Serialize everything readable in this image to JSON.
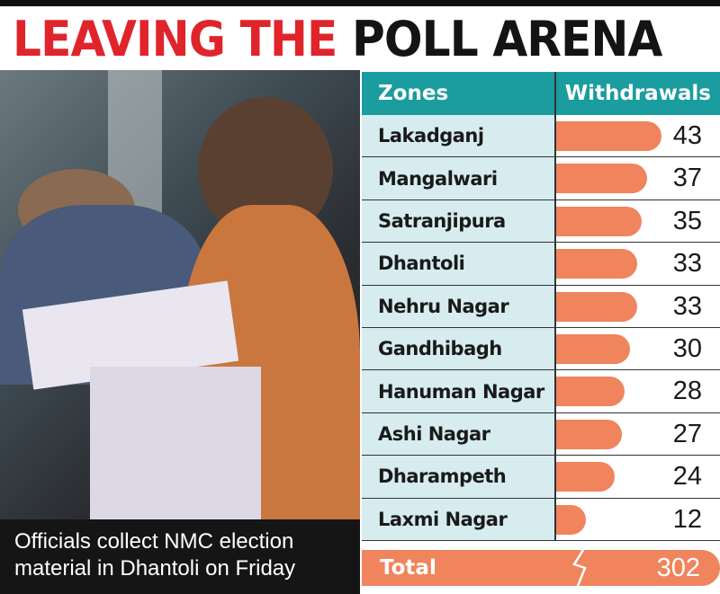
{
  "title": {
    "part1": "LEAVING THE",
    "part2": "POLL ARENA"
  },
  "caption": "Officials collect NMC election material in Dhantoli on Friday",
  "colors": {
    "title_red": "#e0242b",
    "header_teal": "#1b9c9e",
    "bar_orange": "#f0845c",
    "zone_bg": "#d6ecee"
  },
  "chart_data": {
    "type": "bar",
    "orientation": "horizontal",
    "title": "LEAVING THE POLL ARENA",
    "columns": [
      "Zones",
      "Withdrawals"
    ],
    "categories": [
      "Lakadganj",
      "Mangalwari",
      "Satranjipura",
      "Dhantoli",
      "Nehru Nagar",
      "Gandhibagh",
      "Hanuman Nagar",
      "Ashi Nagar",
      "Dharampeth",
      "Laxmi Nagar"
    ],
    "values": [
      43,
      37,
      35,
      33,
      33,
      30,
      28,
      27,
      24,
      12
    ],
    "total_label": "Total",
    "total": 302
  }
}
